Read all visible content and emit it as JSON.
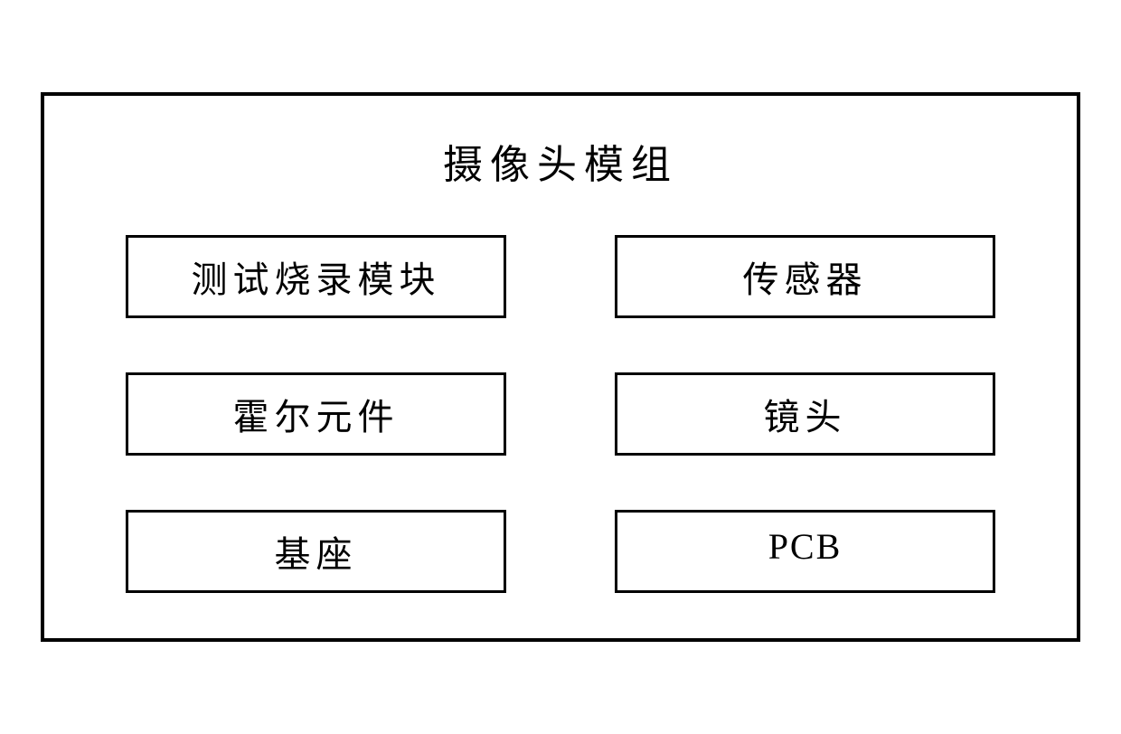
{
  "diagram": {
    "type": "block-diagram",
    "title": "摄像头模组",
    "outer_border_color": "#000000",
    "outer_border_width": 4,
    "background_color": "#ffffff",
    "title_fontsize": 44,
    "block_fontsize": 40,
    "block_border_color": "#000000",
    "block_border_width": 3,
    "grid_columns": 2,
    "grid_rows": 3,
    "blocks": [
      {
        "label": "测试烧录模块",
        "latin": false
      },
      {
        "label": "传感器",
        "latin": false
      },
      {
        "label": "霍尔元件",
        "latin": false
      },
      {
        "label": "镜头",
        "latin": false
      },
      {
        "label": "基座",
        "latin": false
      },
      {
        "label": "PCB",
        "latin": true
      }
    ]
  }
}
